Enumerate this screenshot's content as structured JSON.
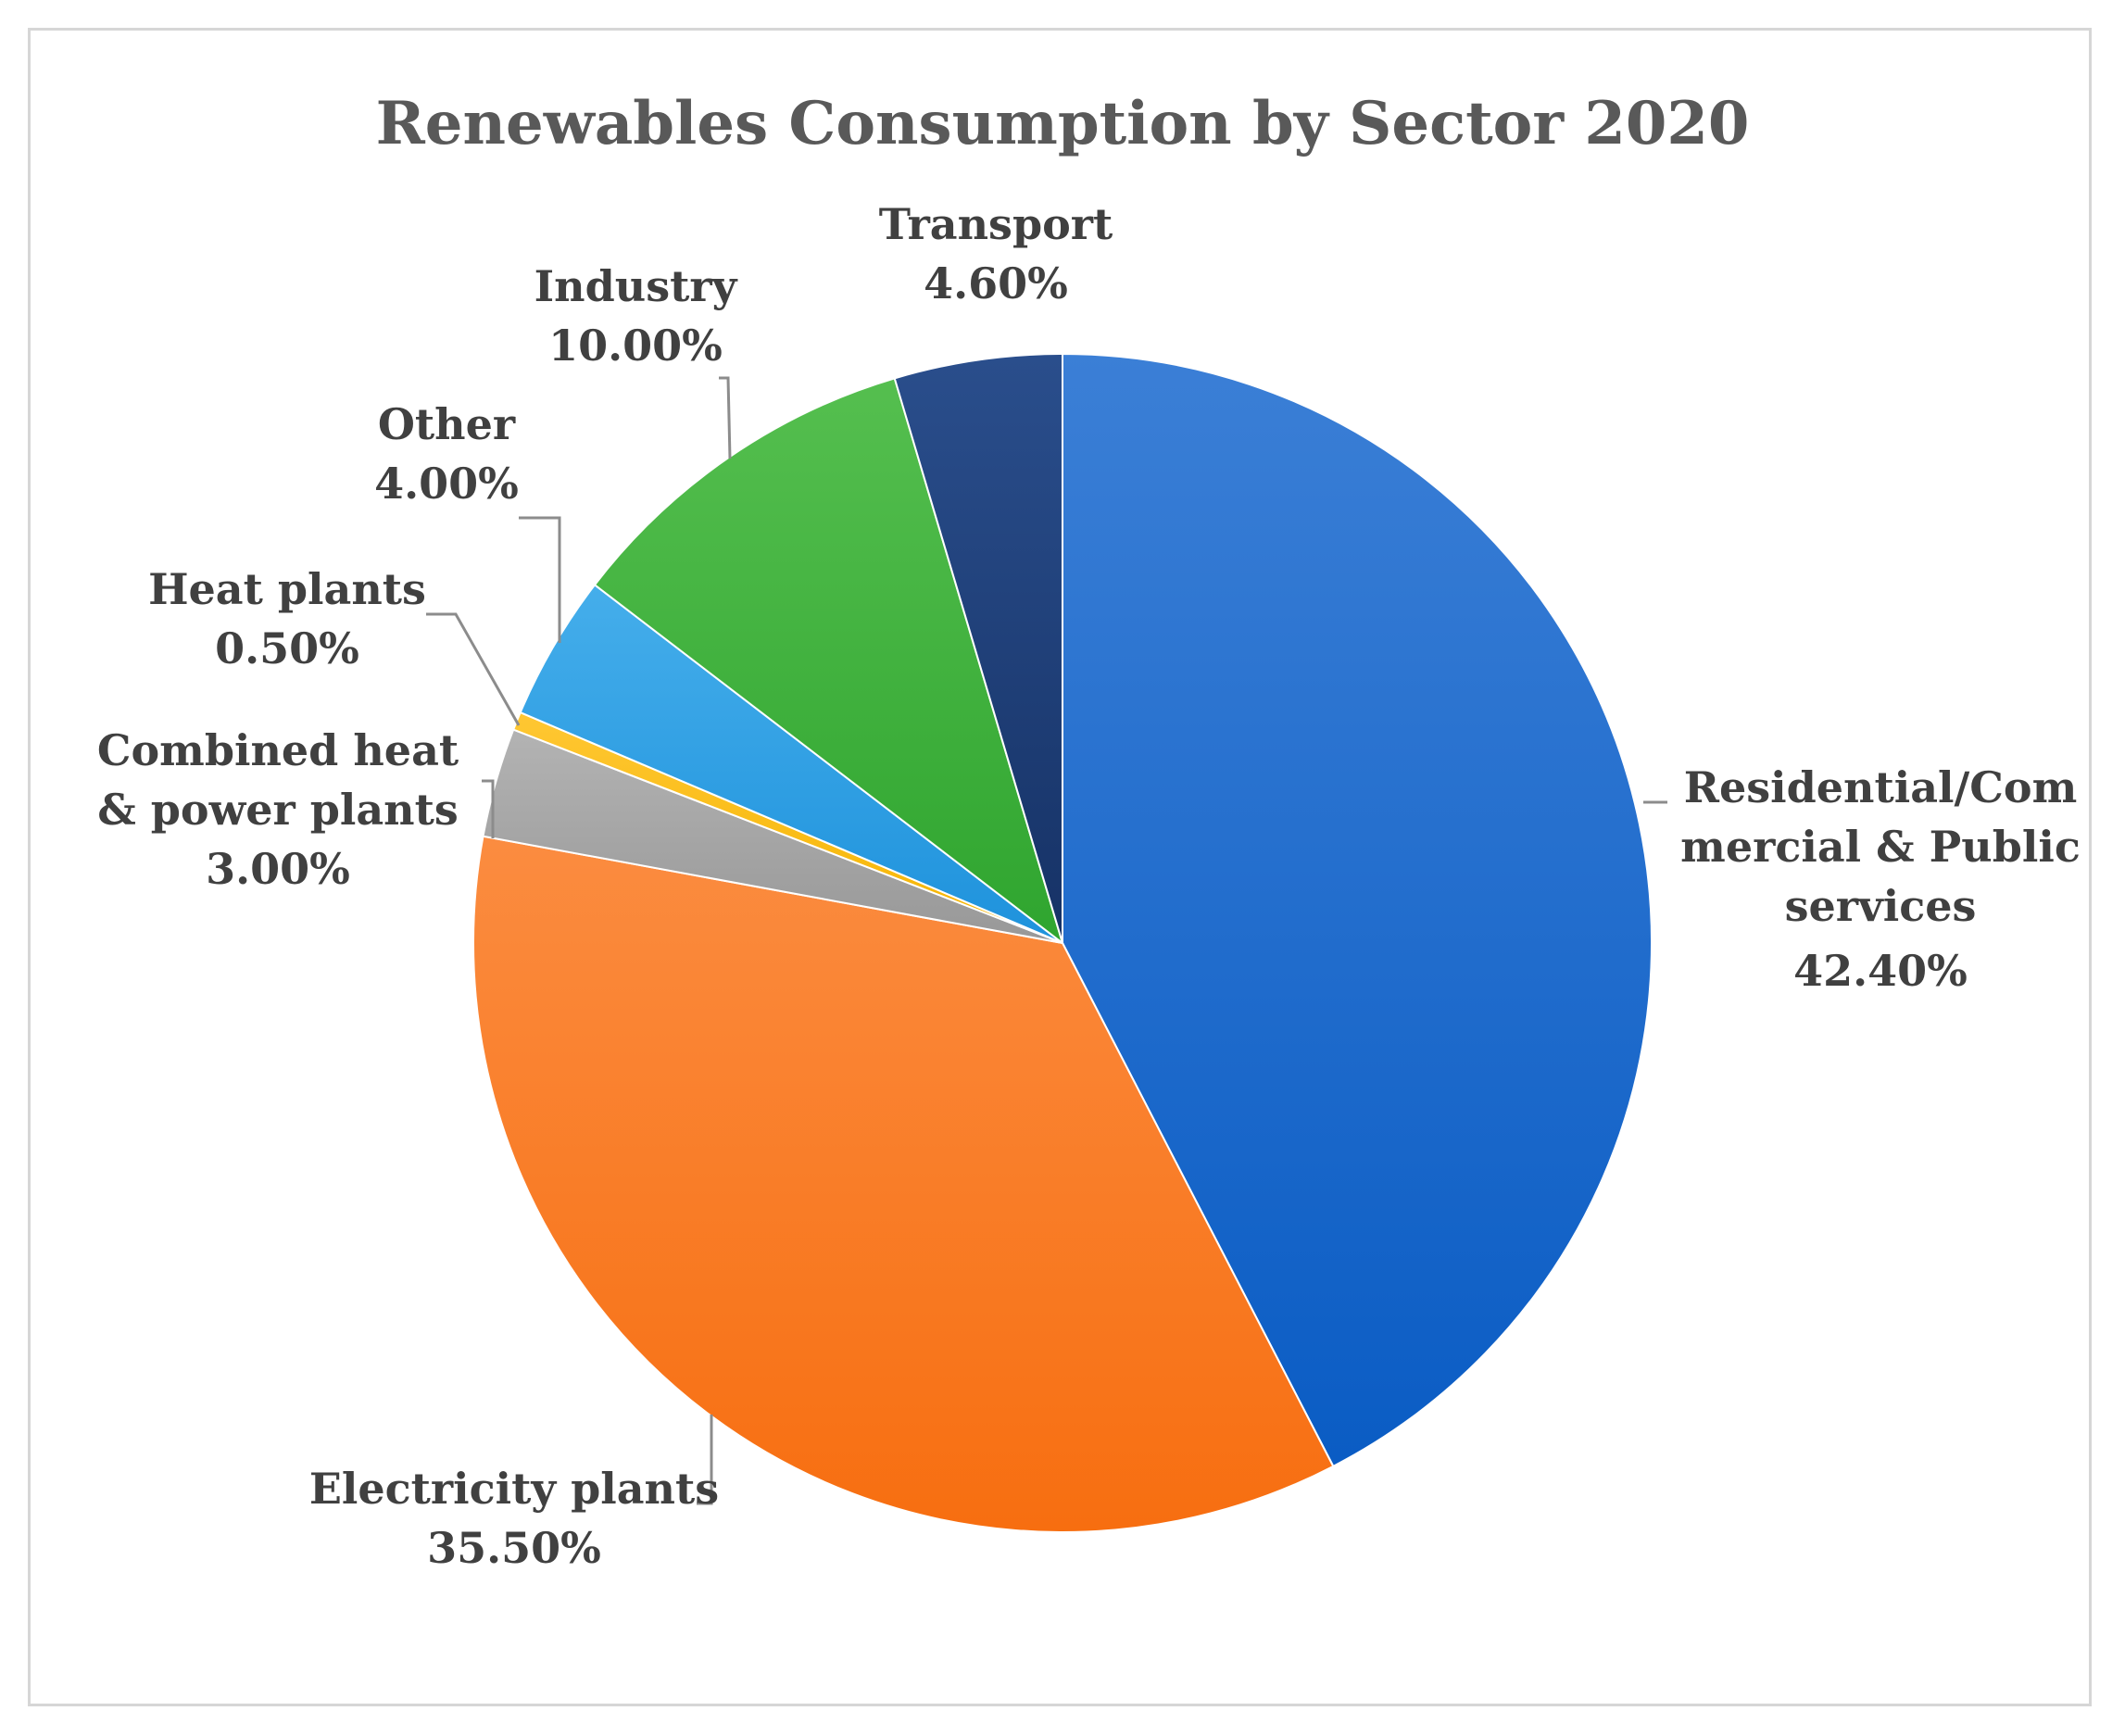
{
  "chart_data": {
    "type": "pie",
    "title": "Renewables Consumption by Sector 2020",
    "start_angle_deg": 0,
    "direction": "clockwise",
    "slices": [
      {
        "name": "residential",
        "label_lines": [
          "Residential/Com",
          "mercial & Public",
          "services"
        ],
        "value_label": "42.40%",
        "value": 42.4,
        "color": "#1565C8",
        "gradient": [
          "#3B7FD6",
          "#0A5CC4"
        ]
      },
      {
        "name": "electricity",
        "label_lines": [
          "Electricity plants"
        ],
        "value_label": "35.50%",
        "value": 35.5,
        "color": "#F97518",
        "gradient": [
          "#FB8C40",
          "#F76E10"
        ]
      },
      {
        "name": "chp",
        "label_lines": [
          "Combined heat",
          "& power plants"
        ],
        "value_label": "3.00%",
        "value": 3.0,
        "color": "#A6A6A6",
        "gradient": [
          "#B3B3B3",
          "#989898"
        ]
      },
      {
        "name": "heat",
        "label_lines": [
          "Heat plants"
        ],
        "value_label": "0.50%",
        "value": 0.5,
        "color": "#FFC000",
        "gradient": [
          "#FFC733",
          "#F5B400"
        ]
      },
      {
        "name": "other",
        "label_lines": [
          "Other"
        ],
        "value_label": "4.00%",
        "value": 4.0,
        "color": "#2E9FE6",
        "gradient": [
          "#45AEEB",
          "#1E92DC"
        ]
      },
      {
        "name": "industry",
        "label_lines": [
          "Industry"
        ],
        "value_label": "10.00%",
        "value": 10.0,
        "color": "#3DB23A",
        "gradient": [
          "#55BF4F",
          "#2FA52F"
        ]
      },
      {
        "name": "transport",
        "label_lines": [
          "Transport"
        ],
        "value_label": "4.60%",
        "value": 4.6,
        "color": "#1F3E78",
        "gradient": [
          "#2A4E8C",
          "#163266"
        ]
      }
    ]
  }
}
